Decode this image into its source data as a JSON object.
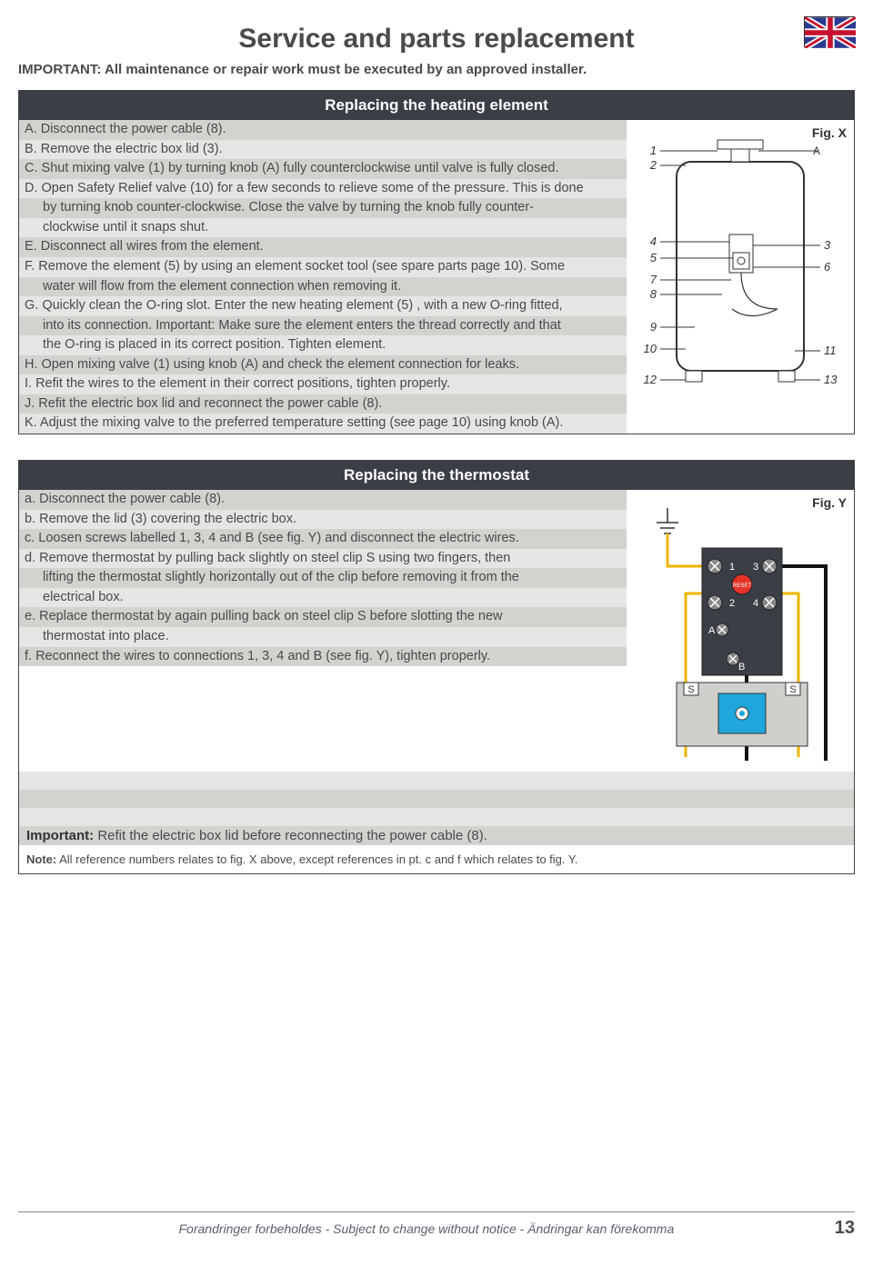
{
  "colors": {
    "header_bg": "#3a3e45",
    "stripe_a": "#d4d2cf",
    "stripe_b": "#e7e5e3",
    "text": "#4a4a4a",
    "flag_blue": "#2a3a8f",
    "flag_red": "#c8102e",
    "reset_red": "#e53328",
    "water_blue": "#1fa7dd",
    "wire_yellow": "#f0b400",
    "wire_black": "#111111"
  },
  "title": "Service and parts replacement",
  "important": "IMPORTANT: All maintenance or repair work must be executed by an approved installer.",
  "section1": {
    "header": "Replacing the heating element",
    "fig_label": "Fig. X",
    "callouts_left": [
      "1",
      "2",
      "4",
      "5",
      "7",
      "8",
      "9",
      "10",
      "12"
    ],
    "callouts_right": [
      "A",
      "3",
      "6",
      "11",
      "13"
    ],
    "rows": [
      {
        "t": "A. Disconnect the power cable (8).",
        "indent": false
      },
      {
        "t": "B. Remove the electric box lid (3).",
        "indent": false
      },
      {
        "t": "C. Shut mixing valve (1) by turning knob (A) fully counterclockwise until valve is fully closed.",
        "indent": false
      },
      {
        "t": "D. Open Safety Relief valve (10) for a few seconds to relieve some of the pressure. This is done",
        "indent": false
      },
      {
        "t": "by turning knob counter-clockwise. Close the valve by turning the knob fully counter-",
        "indent": true
      },
      {
        "t": "clockwise until it snaps shut.",
        "indent": true
      },
      {
        "t": "E. Disconnect all wires from the element.",
        "indent": false
      },
      {
        "t": "F. Remove the element (5) by using an element socket tool (see spare parts page 10). Some",
        "indent": false
      },
      {
        "t": "water will flow from the element connection when removing it.",
        "indent": true
      },
      {
        "t": "G. Quickly clean the O-ring slot. Enter the new heating element (5) , with a new O-ring fitted,",
        "indent": false
      },
      {
        "t": "into its connection. Important: Make sure the element enters the thread correctly and that",
        "indent": true
      },
      {
        "t": "the O-ring is placed in its correct position. Tighten element.",
        "indent": true
      },
      {
        "t": "H. Open mixing valve (1) using knob (A) and check the element connection for leaks.",
        "indent": false
      },
      {
        "t": " I. Refit the wires to the element in their correct positions, tighten properly.",
        "indent": false
      },
      {
        "t": "J. Refit the electric box lid and reconnect the power cable (8).",
        "indent": false
      },
      {
        "t": "K. Adjust the mixing valve to the preferred temperature setting (see page 10) using knob (A).",
        "indent": false
      }
    ]
  },
  "section2": {
    "header": "Replacing the thermostat",
    "fig_label": "Fig. Y",
    "terminal_labels": [
      "1",
      "3",
      "2",
      "4"
    ],
    "reset_label": "RESET",
    "letters": {
      "A": "A",
      "B": "B",
      "S": "S"
    },
    "rows": [
      {
        "t": "a. Disconnect the power cable (8).",
        "indent": false
      },
      {
        "t": "b. Remove the lid (3) covering the electric box.",
        "indent": false
      },
      {
        "t": "c. Loosen screws labelled 1, 3, 4 and B (see fig. Y) and disconnect the electric wires.",
        "indent": false
      },
      {
        "t": "d. Remove thermostat by pulling back slightly on steel clip S using two fingers, then",
        "indent": false
      },
      {
        "t": "lifting the thermostat slightly horizontally out of the clip before removing it from the",
        "indent": true
      },
      {
        "t": "electrical box.",
        "indent": true
      },
      {
        "t": "e. Replace thermostat by again pulling back on steel clip S before slotting the new",
        "indent": false
      },
      {
        "t": "thermostat into place.",
        "indent": true
      },
      {
        "t": "f. Reconnect the wires to connections 1, 3, 4 and B (see fig. Y), tighten properly.",
        "indent": false
      }
    ],
    "blank_rows": 3,
    "important_prefix": "Important:",
    "important_text": " Refit the electric box lid before reconnecting the power cable (8).",
    "note_prefix": "Note:",
    "note_text": " All reference numbers relates to fig. X above, except references in pt. c and f which relates to fig. Y."
  },
  "footer": {
    "text": "Forandringer forbeholdes - Subject to change without notice - Ändringar kan förekomma",
    "page": "13"
  }
}
